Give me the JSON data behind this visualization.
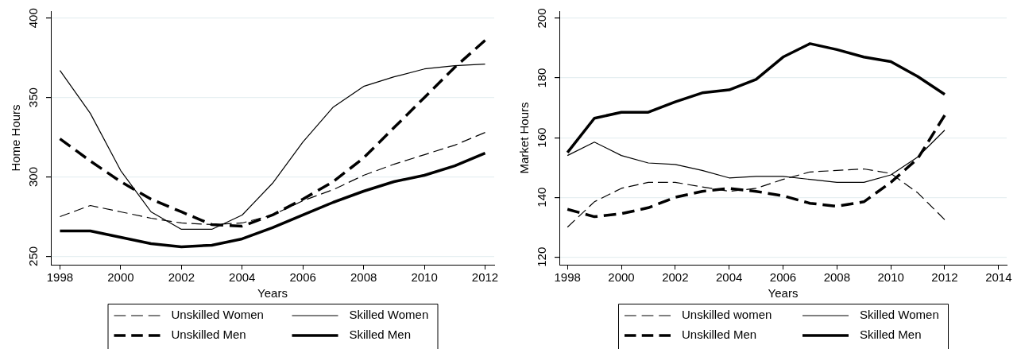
{
  "chart_data": [
    {
      "type": "line",
      "xlabel": "Years",
      "ylabel": "Home Hours",
      "x": [
        1998,
        1999,
        2000,
        2001,
        2002,
        2003,
        2004,
        2005,
        2006,
        2007,
        2008,
        2009,
        2010,
        2011,
        2012
      ],
      "xlim": [
        1997.7,
        2012.3
      ],
      "xticks": [
        1998,
        2000,
        2002,
        2004,
        2006,
        2008,
        2010,
        2012
      ],
      "ylim": [
        244.7,
        404.4
      ],
      "yticks": [
        250,
        300,
        350,
        400
      ],
      "grid": "y",
      "legend": "bottom",
      "marker": "none",
      "series": [
        {
          "name": "Unskilled Women",
          "color": "#000000",
          "line_style": "dashed",
          "values": [
            275,
            282,
            278,
            274,
            271,
            270,
            271,
            276,
            285,
            292,
            301,
            308,
            314,
            320,
            328
          ]
        },
        {
          "name": "Skilled Women",
          "color": "#000000",
          "line_style": "solid",
          "values": [
            367,
            340,
            304,
            278,
            267,
            267,
            276,
            296,
            322,
            344,
            357,
            363,
            368,
            370,
            371
          ]
        },
        {
          "name": "Unskilled Men",
          "color": "#000000",
          "line_style": "dashed",
          "values": [
            324,
            310,
            297,
            286,
            278,
            270,
            269,
            276,
            286,
            297,
            312,
            331,
            350,
            369,
            386
          ]
        },
        {
          "name": "Skilled Men",
          "color": "#000000",
          "line_style": "solid",
          "values": [
            266,
            266,
            262,
            258,
            256,
            257,
            261,
            268,
            276,
            284,
            291,
            297,
            301,
            307,
            315
          ]
        }
      ]
    },
    {
      "type": "line",
      "xlabel": "Years",
      "ylabel": "Market Hours",
      "x": [
        1998,
        1999,
        2000,
        2001,
        2002,
        2003,
        2004,
        2005,
        2006,
        2007,
        2008,
        2009,
        2010,
        2011,
        2012
      ],
      "xlim": [
        1997.7,
        2014.3
      ],
      "xticks": [
        1998,
        2000,
        2002,
        2004,
        2006,
        2008,
        2010,
        2012,
        2014
      ],
      "ylim": [
        117.4,
        202.4
      ],
      "yticks": [
        120,
        140,
        160,
        180,
        200
      ],
      "grid": "y",
      "legend": "bottom",
      "marker": "none",
      "series": [
        {
          "name": "Unskilled women",
          "color": "#000000",
          "line_style": "dashed",
          "values": [
            130,
            138.5,
            143,
            145,
            145,
            143.5,
            142,
            143,
            146,
            148.5,
            149,
            149.5,
            148,
            141.5,
            132.5
          ]
        },
        {
          "name": "Skilled Women",
          "color": "#000000",
          "line_style": "solid",
          "values": [
            154,
            158.5,
            154,
            151.5,
            151,
            149,
            146.5,
            147,
            147,
            146,
            145,
            145,
            147.5,
            153.5,
            162.5
          ]
        },
        {
          "name": "Unskilled Men",
          "color": "#000000",
          "line_style": "dashed",
          "values": [
            136,
            133.5,
            134.5,
            136.5,
            140,
            142,
            143,
            142,
            140.5,
            138,
            137,
            138.5,
            145,
            153,
            167.5
          ]
        },
        {
          "name": "Skilled Men",
          "color": "#000000",
          "line_style": "solid",
          "values": [
            155,
            166.5,
            168.5,
            168.5,
            172,
            175,
            176,
            179.5,
            187,
            191.5,
            189.5,
            187,
            185.5,
            180.5,
            174.5
          ]
        }
      ]
    }
  ]
}
